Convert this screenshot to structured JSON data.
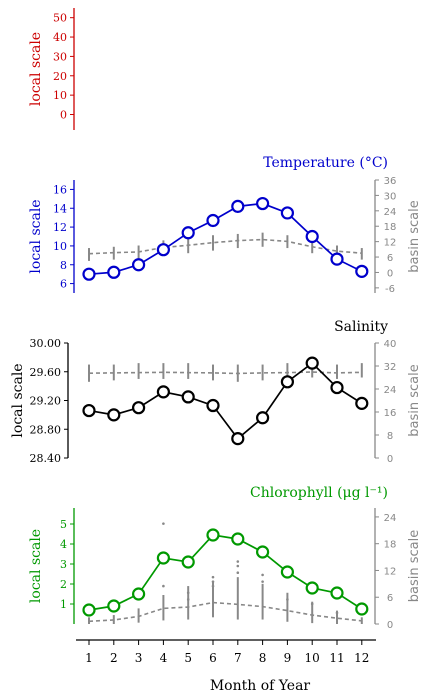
{
  "chart_data": [
    {
      "type": "line",
      "title": "",
      "ylabel": "local scale",
      "ylim": [
        -8,
        55
      ],
      "yticks": [
        0,
        10,
        20,
        30,
        40,
        50
      ],
      "color": "#cc0000",
      "series": []
    },
    {
      "type": "line",
      "title": "Temperature (°C)",
      "ylabel": "local scale",
      "ylabel_right": "basin scale",
      "color": "#0000cc",
      "ylim": [
        5,
        17
      ],
      "yticks": [
        6,
        8,
        10,
        12,
        14,
        16
      ],
      "ylim_right": [
        -8,
        36
      ],
      "yticks_right": [
        -6,
        0,
        6,
        12,
        18,
        24,
        30,
        36
      ],
      "x": [
        1,
        2,
        3,
        4,
        5,
        6,
        7,
        8,
        9,
        10,
        11,
        12
      ],
      "series": [
        {
          "axis": "local",
          "values": [
            7.0,
            7.2,
            8.0,
            9.6,
            11.4,
            12.7,
            14.2,
            14.5,
            13.5,
            11.0,
            8.6,
            7.3
          ]
        },
        {
          "axis": "basin",
          "values": [
            7.3,
            7.7,
            8.0,
            9.7,
            10.6,
            11.6,
            12.4,
            12.8,
            12.1,
            10.0,
            8.3,
            7.5
          ],
          "range_low": [
            4.5,
            5,
            5.5,
            6.5,
            7.5,
            8.5,
            9.5,
            10,
            9.5,
            7.5,
            5.5,
            5
          ],
          "range_high": [
            9.5,
            10,
            10.5,
            12.5,
            13.5,
            14.5,
            15,
            15.5,
            14.5,
            12.5,
            10.5,
            9.5
          ]
        }
      ]
    },
    {
      "type": "line",
      "title": "Salinity",
      "ylabel": "local scale",
      "ylabel_right": "basin scale",
      "color": "#000000",
      "ylim": [
        28.4,
        30.0
      ],
      "yticks": [
        "28.40",
        "28.80",
        "29.20",
        "29.60",
        "30.00"
      ],
      "ylim_right": [
        0,
        40
      ],
      "yticks_right": [
        0,
        8,
        16,
        24,
        32,
        40
      ],
      "x": [
        1,
        2,
        3,
        4,
        5,
        6,
        7,
        8,
        9,
        10,
        11,
        12
      ],
      "series": [
        {
          "axis": "local",
          "values": [
            29.06,
            29.0,
            29.1,
            29.32,
            29.25,
            29.13,
            28.67,
            28.96,
            29.46,
            29.72,
            29.38,
            29.16
          ]
        },
        {
          "axis": "basin",
          "values": [
            29.5,
            29.6,
            29.7,
            29.8,
            29.7,
            29.6,
            29.4,
            29.6,
            29.7,
            29.9,
            29.6,
            29.8
          ],
          "range_low": [
            26.5,
            27,
            27.5,
            27.5,
            27.5,
            27,
            26.5,
            27,
            27.5,
            28,
            27.5,
            28
          ],
          "range_high": [
            32.5,
            32.5,
            33,
            33,
            33,
            32.5,
            32.5,
            32.5,
            33,
            33,
            32.5,
            33
          ]
        }
      ]
    },
    {
      "type": "line",
      "title": "Chlorophyll (μg l⁻¹)",
      "ylabel": "local scale",
      "ylabel_right": "basin scale",
      "color": "#009900",
      "ylim": [
        0,
        5.8
      ],
      "yticks": [
        1,
        2,
        3,
        4,
        5
      ],
      "ylim_right": [
        0,
        26
      ],
      "yticks_right": [
        0,
        6,
        12,
        18,
        24
      ],
      "x": [
        1,
        2,
        3,
        4,
        5,
        6,
        7,
        8,
        9,
        10,
        11,
        12
      ],
      "series": [
        {
          "axis": "local",
          "values": [
            0.7,
            0.9,
            1.5,
            3.3,
            3.1,
            4.45,
            4.25,
            3.6,
            2.6,
            1.8,
            1.55,
            0.75
          ]
        },
        {
          "axis": "basin",
          "values": [
            0.6,
            0.9,
            1.7,
            3.5,
            3.8,
            4.8,
            4.4,
            3.9,
            3.0,
            2.0,
            1.3,
            0.7
          ],
          "range_low": [
            0,
            0,
            0.3,
            0.8,
            1,
            1.5,
            1,
            1,
            0.5,
            0.2,
            0,
            0
          ],
          "range_high": [
            1.5,
            2,
            3.5,
            6.5,
            8.5,
            9.5,
            10.5,
            9,
            7,
            5,
            3,
            1.5
          ],
          "outliers": [
            [
              4,
              22.5
            ],
            [
              4,
              8.5
            ],
            [
              5,
              7
            ],
            [
              5,
              5.5
            ],
            [
              6,
              10.5
            ],
            [
              6,
              9.5
            ],
            [
              6,
              8.5
            ],
            [
              7,
              14
            ],
            [
              7,
              13
            ],
            [
              7,
              11.5
            ],
            [
              8,
              11
            ],
            [
              8,
              9.5
            ],
            [
              9,
              5.5
            ],
            [
              10,
              4.5
            ],
            [
              11,
              2.5
            ]
          ]
        }
      ]
    }
  ],
  "xaxis": {
    "label": "Month of Year",
    "ticks": [
      "1",
      "2",
      "3",
      "4",
      "5",
      "6",
      "7",
      "8",
      "9",
      "10",
      "11",
      "12"
    ]
  }
}
